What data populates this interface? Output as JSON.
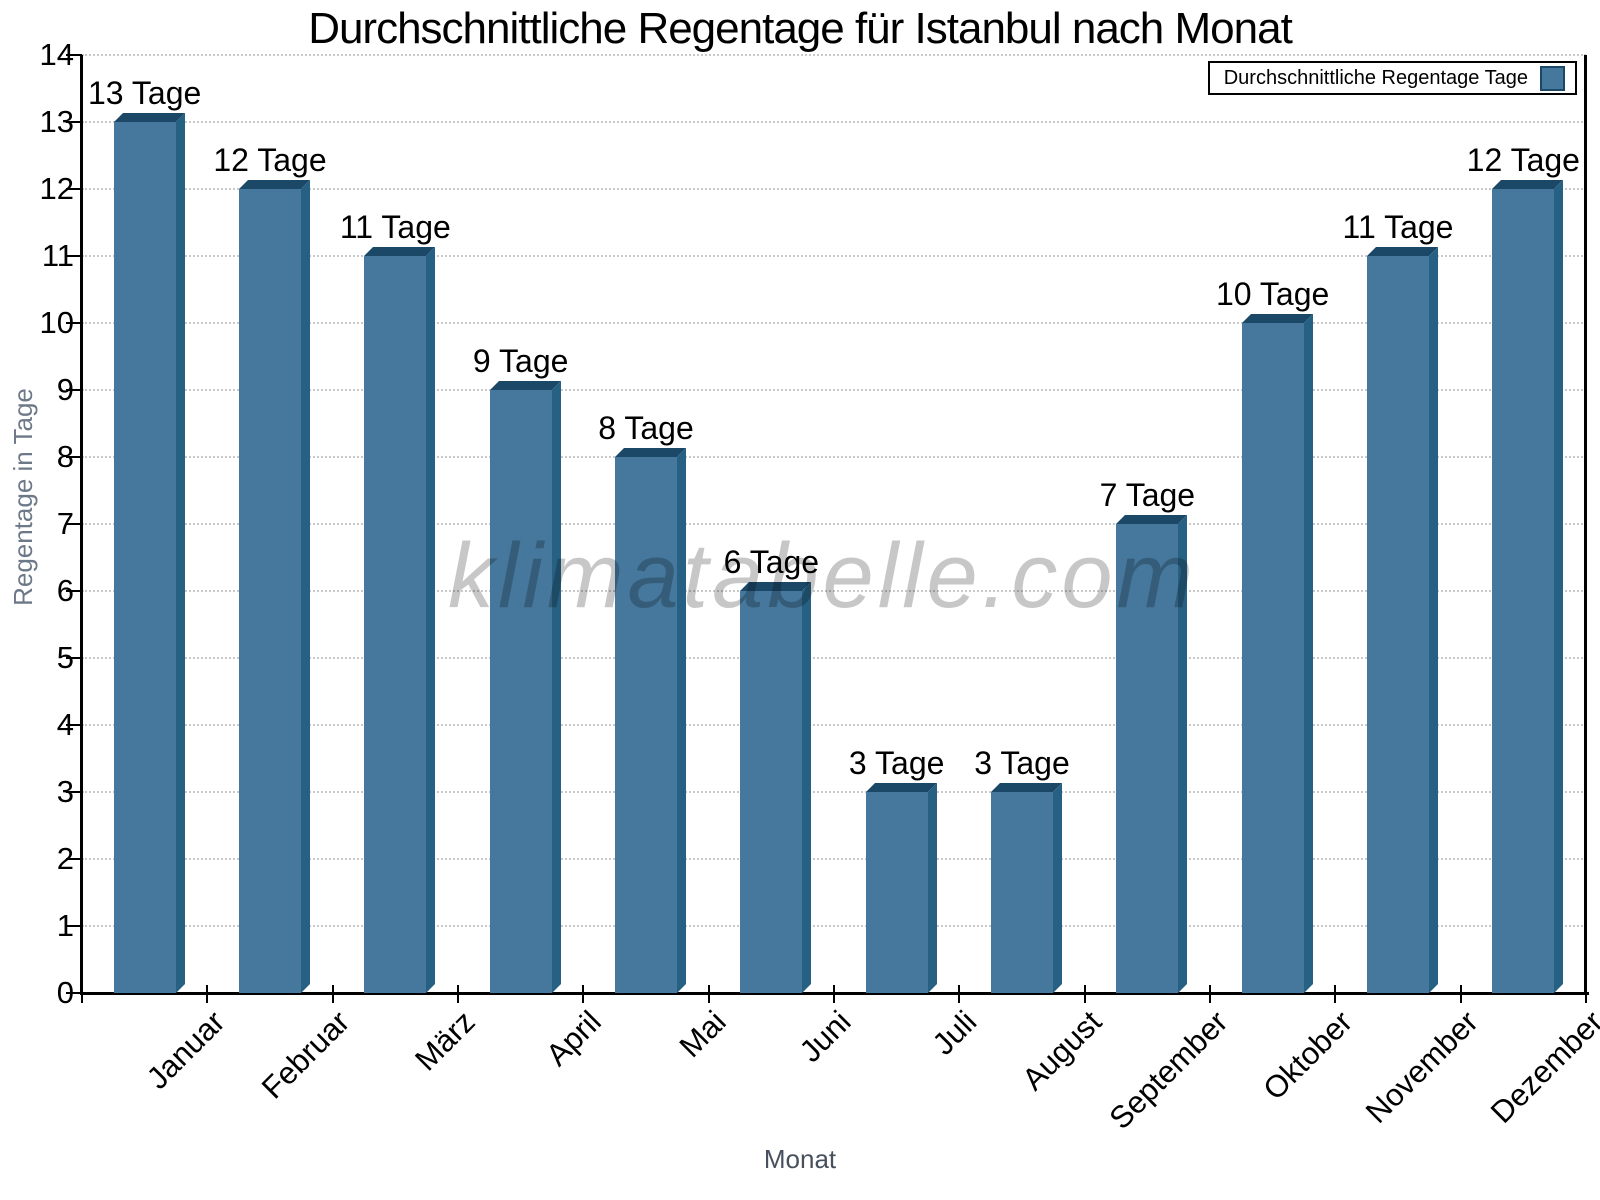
{
  "title": "Durchschnittliche Regentage für Istanbul nach Monat",
  "watermark": "klimatabelle.com",
  "legend": {
    "label": "Durchschnittliche Regentage Tage"
  },
  "axes": {
    "y_title": "Regentage in Tage",
    "x_title": "Monat"
  },
  "chart_data": {
    "type": "bar",
    "title": "Durchschnittliche Regentage für Istanbul nach Monat",
    "categories": [
      "Januar",
      "Februar",
      "März",
      "April",
      "Mai",
      "Juni",
      "Juli",
      "August",
      "September",
      "Oktober",
      "November",
      "Dezember"
    ],
    "values": [
      13,
      12,
      11,
      9,
      8,
      6,
      3,
      3,
      7,
      10,
      11,
      12
    ],
    "bar_labels": [
      "13 Tage",
      "12 Tage",
      "11 Tage",
      "9 Tage",
      "8 Tage",
      "6 Tage",
      "3 Tage",
      "3 Tage",
      "7 Tage",
      "10 Tage",
      "11 Tage",
      "12 Tage"
    ],
    "xlabel": "Monat",
    "ylabel": "Regentage in Tage",
    "ylim": [
      0,
      14
    ],
    "yticks": [
      0,
      1,
      2,
      3,
      4,
      5,
      6,
      7,
      8,
      9,
      10,
      11,
      12,
      13,
      14
    ],
    "legend": "Durchschnittliche Regentage Tage",
    "legend_position": "top-right",
    "grid": "horizontal dotted",
    "colors": {
      "bar_face": "#45789c",
      "bar_top": "#1c4867",
      "bar_side": "#266083",
      "axis": "#000000",
      "gridline": "#c9c9c9",
      "watermark": "#c4c4c4"
    }
  }
}
